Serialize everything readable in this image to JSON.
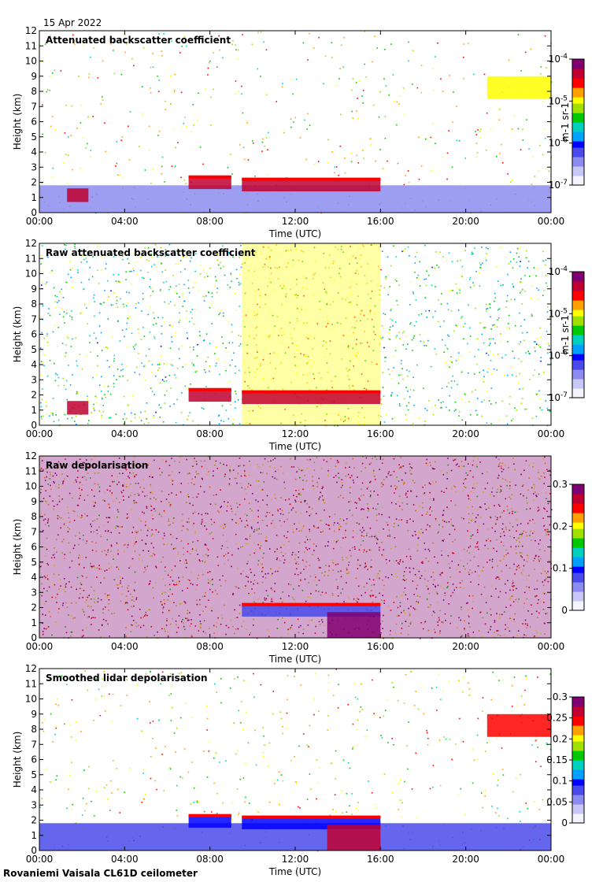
{
  "date": "15 Apr 2022",
  "footer": "Rovaniemi Vaisala CL61D ceilometer",
  "colors": {
    "rainbow": [
      "#f4f4ff",
      "#c8c8f8",
      "#8c8cf0",
      "#4a4aea",
      "#0000ff",
      "#00a0ff",
      "#00d0c0",
      "#00c800",
      "#a0e000",
      "#ffff00",
      "#ffa000",
      "#ff0000",
      "#c00030",
      "#800070"
    ]
  },
  "chart_data": [
    {
      "type": "heatmap",
      "title": "Attenuated backscatter coefficient",
      "xlabel": "Time (UTC)",
      "ylabel": "Height (km)",
      "x_ticks": [
        "00:00",
        "04:00",
        "08:00",
        "12:00",
        "16:00",
        "20:00",
        "00:00"
      ],
      "y_ticks": [
        "0",
        "1",
        "2",
        "3",
        "4",
        "5",
        "6",
        "7",
        "8",
        "9",
        "10",
        "11",
        "12"
      ],
      "ylim": [
        0,
        12
      ],
      "xlim_hours": [
        0,
        24
      ],
      "colorbar": {
        "ticks": [
          "10-7",
          "10-6",
          "10-5",
          "10-4"
        ],
        "tick_labels": [
          {
            "base": "10",
            "exp": "-7"
          },
          {
            "base": "10",
            "exp": "-6"
          },
          {
            "base": "10",
            "exp": "-5"
          },
          {
            "base": "10",
            "exp": "-4"
          }
        ],
        "unit": "m-1 sr-1",
        "scale": "log"
      },
      "features": [
        {
          "name": "boundary layer",
          "start_hour": 0,
          "end_hour": 24,
          "top_km": 1.8,
          "level": 0.15
        },
        {
          "name": "cloud layer",
          "start_hour": 7.0,
          "end_hour": 9.0,
          "top_km": 2.45,
          "level": 0.9
        },
        {
          "name": "cloud layer",
          "start_hour": 9.5,
          "end_hour": 16.0,
          "top_km": 2.3,
          "level": 0.9
        },
        {
          "name": "low cloud",
          "start_hour": 1.3,
          "end_hour": 2.3,
          "top_km": 1.6,
          "level": 0.9
        },
        {
          "name": "upper aerosol",
          "start_hour": 21.0,
          "end_hour": 24.0,
          "top_km": 9.0,
          "level": 0.65
        }
      ]
    },
    {
      "type": "heatmap",
      "title": "Raw attenuated backscatter coefficient",
      "xlabel": "Time (UTC)",
      "ylabel": "Height (km)",
      "x_ticks": [
        "00:00",
        "04:00",
        "08:00",
        "12:00",
        "16:00",
        "20:00",
        "00:00"
      ],
      "y_ticks": [
        "0",
        "1",
        "2",
        "3",
        "4",
        "5",
        "6",
        "7",
        "8",
        "9",
        "10",
        "11",
        "12"
      ],
      "ylim": [
        0,
        12
      ],
      "xlim_hours": [
        0,
        24
      ],
      "colorbar": {
        "ticks": [
          "10-7",
          "10-6",
          "10-5",
          "10-4"
        ],
        "tick_labels": [
          {
            "base": "10",
            "exp": "-7"
          },
          {
            "base": "10",
            "exp": "-6"
          },
          {
            "base": "10",
            "exp": "-5"
          },
          {
            "base": "10",
            "exp": "-4"
          }
        ],
        "unit": "m-1 sr-1",
        "scale": "log"
      },
      "features": [
        {
          "name": "daytime noise",
          "start_hour": 9.5,
          "end_hour": 16.0,
          "top_km": 12,
          "level": 0.7
        },
        {
          "name": "cloud layer",
          "start_hour": 7.0,
          "end_hour": 9.0,
          "top_km": 2.45,
          "level": 0.9
        },
        {
          "name": "cloud layer",
          "start_hour": 9.5,
          "end_hour": 16.0,
          "top_km": 2.3,
          "level": 0.9
        },
        {
          "name": "low cloud",
          "start_hour": 1.3,
          "end_hour": 2.3,
          "top_km": 1.6,
          "level": 0.9
        }
      ]
    },
    {
      "type": "heatmap",
      "title": "Raw depolarisation",
      "xlabel": "Time (UTC)",
      "ylabel": "Height (km)",
      "x_ticks": [
        "00:00",
        "04:00",
        "08:00",
        "12:00",
        "16:00",
        "20:00",
        "00:00"
      ],
      "y_ticks": [
        "0",
        "1",
        "2",
        "3",
        "4",
        "5",
        "6",
        "7",
        "8",
        "9",
        "10",
        "11",
        "12"
      ],
      "ylim": [
        0,
        12
      ],
      "xlim_hours": [
        0,
        24
      ],
      "colorbar": {
        "ticks": [
          "0",
          "0.1",
          "0.2",
          "0.3"
        ],
        "range": [
          0,
          0.3
        ],
        "scale": "linear"
      },
      "features": [
        {
          "name": "noise",
          "start_hour": 0,
          "end_hour": 24,
          "top_km": 12,
          "level": 0.98
        },
        {
          "name": "cloud layer",
          "start_hour": 9.5,
          "end_hour": 16.0,
          "top_km": 2.3,
          "level": 0.25
        },
        {
          "name": "ice fall streaks",
          "start_hour": 13.5,
          "end_hour": 16.0,
          "top_km": 1.7,
          "level": 0.95
        }
      ]
    },
    {
      "type": "heatmap",
      "title": "Smoothed lidar depolarisation",
      "xlabel": "Time (UTC)",
      "ylabel": "Height (km)",
      "x_ticks": [
        "00:00",
        "04:00",
        "08:00",
        "12:00",
        "16:00",
        "20:00",
        "00:00"
      ],
      "y_ticks": [
        "0",
        "1",
        "2",
        "3",
        "4",
        "5",
        "6",
        "7",
        "8",
        "9",
        "10",
        "11",
        "12"
      ],
      "ylim": [
        0,
        12
      ],
      "xlim_hours": [
        0,
        24
      ],
      "colorbar": {
        "ticks": [
          "0",
          "0.05",
          "0.1",
          "0.15",
          "0.2",
          "0.25",
          "0.3"
        ],
        "range": [
          0,
          0.3
        ],
        "scale": "linear"
      },
      "features": [
        {
          "name": "boundary layer",
          "start_hour": 0,
          "end_hour": 24,
          "top_km": 1.8,
          "level": 0.25
        },
        {
          "name": "cloud layer",
          "start_hour": 7.0,
          "end_hour": 9.0,
          "top_km": 2.4,
          "level": 0.35
        },
        {
          "name": "cloud layer",
          "start_hour": 9.5,
          "end_hour": 16.0,
          "top_km": 2.3,
          "level": 0.3
        },
        {
          "name": "ice fall streaks",
          "start_hour": 13.5,
          "end_hour": 16.0,
          "top_km": 1.7,
          "level": 0.9
        },
        {
          "name": "upper aerosol",
          "start_hour": 21.0,
          "end_hour": 24.0,
          "top_km": 9.0,
          "level": 0.85
        }
      ]
    }
  ]
}
